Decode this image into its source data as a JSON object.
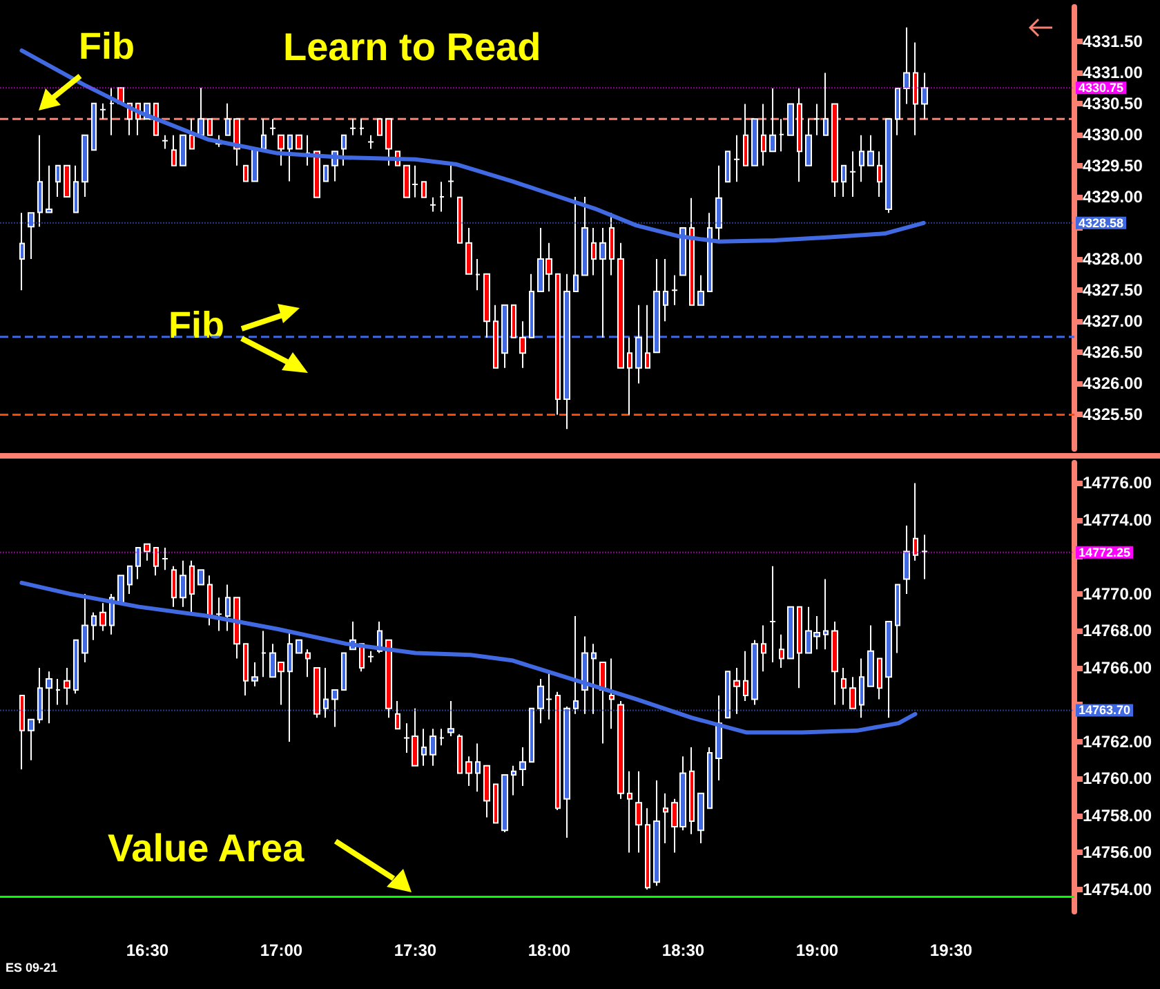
{
  "chart_data": [
    {
      "type": "candlestick",
      "annotations": [
        "Fib",
        "Learn to Read",
        "Fib"
      ],
      "tick_labels": "y",
      "grid": false,
      "marker": "none",
      "xlim": [
        15.95,
        19.96
      ],
      "ylim": [
        4324.95,
        4332.05
      ],
      "yticks": [
        {
          "value": 4325.5,
          "label": "4325.50"
        },
        {
          "value": 4326,
          "label": "4326.00"
        },
        {
          "value": 4326.5,
          "label": "4326.50"
        },
        {
          "value": 4327,
          "label": "4327.00"
        },
        {
          "value": 4327.5,
          "label": "4327.50"
        },
        {
          "value": 4328,
          "label": "4328.00"
        },
        {
          "value": 4328.5,
          "label": null
        },
        {
          "value": 4329,
          "label": "4329.00"
        },
        {
          "value": 4329.5,
          "label": "4329.50"
        },
        {
          "value": 4330,
          "label": "4330.00"
        },
        {
          "value": 4330.5,
          "label": "4330.50"
        },
        {
          "value": 4331,
          "label": "4331.00"
        },
        {
          "value": 4331.5,
          "label": "4331.50"
        }
      ],
      "x": [
        16.0333,
        16.0667,
        16.1,
        16.1333,
        16.1667,
        16.2,
        16.2333,
        16.2667,
        16.3,
        16.3333,
        16.3667,
        16.4,
        16.4333,
        16.4667,
        16.5,
        16.5333,
        16.5667,
        16.6,
        16.6333,
        16.6667,
        16.7,
        16.7333,
        16.7667,
        16.8,
        16.8333,
        16.8667,
        16.9,
        16.9333,
        16.9667,
        17,
        17.0333,
        17.0667,
        17.1,
        17.1333,
        17.1667,
        17.2,
        17.2333,
        17.2667,
        17.3,
        17.3333,
        17.3667,
        17.4,
        17.4333,
        17.4667,
        17.5,
        17.5333,
        17.5667,
        17.6,
        17.6333,
        17.6667,
        17.7,
        17.7333,
        17.7667,
        17.8,
        17.8333,
        17.8667,
        17.9,
        17.9333,
        17.9667,
        18,
        18.0333,
        18.0667,
        18.1,
        18.1333,
        18.1667,
        18.2,
        18.2333,
        18.2667,
        18.3,
        18.3333,
        18.3667,
        18.4,
        18.4333,
        18.4667,
        18.5,
        18.5333,
        18.5667,
        18.6,
        18.6333,
        18.6667,
        18.7,
        18.7333,
        18.7667,
        18.8,
        18.8333,
        18.8667,
        18.9,
        18.9333,
        18.9667,
        19,
        19.0333,
        19.0667,
        19.1,
        19.1333,
        19.1667,
        19.2,
        19.2333,
        19.2667,
        19.3,
        19.3333,
        19.3667,
        19.4
      ],
      "ohlc": [
        [
          4328.0,
          4328.74,
          4327.5,
          4328.25
        ],
        [
          4328.52,
          4328.74,
          4328.0,
          4328.74
        ],
        [
          4328.75,
          4329.99,
          4328.52,
          4329.24
        ],
        [
          4328.75,
          4329.5,
          4328.75,
          4328.8
        ],
        [
          4329.24,
          4329.5,
          4329.0,
          4329.5
        ],
        [
          4329.5,
          4329.5,
          4329.0,
          4329.0
        ],
        [
          4328.75,
          4329.5,
          4328.75,
          4329.24
        ],
        [
          4329.24,
          4329.99,
          4329.0,
          4329.99
        ],
        [
          4329.75,
          4330.5,
          4329.75,
          4330.5
        ],
        [
          4330.4,
          4330.5,
          4330.25,
          4330.4
        ],
        [
          4330.5,
          4330.75,
          4329.99,
          4330.5
        ],
        [
          4330.75,
          4330.75,
          4330.5,
          4330.5
        ],
        [
          4330.5,
          4330.5,
          4329.99,
          4330.25
        ],
        [
          4330.5,
          4330.5,
          4329.99,
          4330.25
        ],
        [
          4330.25,
          4330.5,
          4330.25,
          4330.5
        ],
        [
          4330.5,
          4330.5,
          4329.99,
          4329.99
        ],
        [
          4329.9,
          4329.99,
          4329.77,
          4329.9
        ],
        [
          4329.75,
          4329.99,
          4329.5,
          4329.5
        ],
        [
          4329.5,
          4329.99,
          4329.5,
          4329.99
        ],
        [
          4329.99,
          4330.25,
          4329.77,
          4329.77
        ],
        [
          4329.99,
          4330.75,
          4329.99,
          4330.25
        ],
        [
          4330.25,
          4330.25,
          4329.99,
          4329.99
        ],
        [
          4329.9,
          4329.99,
          4329.8,
          4329.85
        ],
        [
          4329.99,
          4330.5,
          4329.99,
          4330.25
        ],
        [
          4330.25,
          4330.25,
          4329.5,
          4329.77
        ],
        [
          4329.5,
          4329.5,
          4329.25,
          4329.25
        ],
        [
          4329.25,
          4329.77,
          4329.25,
          4329.77
        ],
        [
          4329.77,
          4330.25,
          4329.77,
          4329.99
        ],
        [
          4330.1,
          4330.25,
          4329.99,
          4330.1
        ],
        [
          4329.99,
          4329.99,
          4329.5,
          4329.77
        ],
        [
          4329.77,
          4329.99,
          4329.25,
          4329.99
        ],
        [
          4329.99,
          4329.99,
          4329.77,
          4329.77
        ],
        [
          4329.7,
          4329.99,
          4329.5,
          4329.7
        ],
        [
          4329.73,
          4329.73,
          4328.99,
          4328.99
        ],
        [
          4329.25,
          4329.5,
          4329.25,
          4329.5
        ],
        [
          4329.5,
          4329.73,
          4329.25,
          4329.73
        ],
        [
          4329.77,
          4329.99,
          4329.5,
          4329.99
        ],
        [
          4330.1,
          4330.25,
          4329.99,
          4330.1
        ],
        [
          4330.1,
          4330.25,
          4329.99,
          4330.1
        ],
        [
          4329.88,
          4329.99,
          4329.77,
          4329.88
        ],
        [
          4330.25,
          4330.25,
          4329.99,
          4329.99
        ],
        [
          4330.25,
          4330.25,
          4329.5,
          4329.77
        ],
        [
          4329.73,
          4329.73,
          4329.5,
          4329.5
        ],
        [
          4329.5,
          4329.5,
          4328.99,
          4328.99
        ],
        [
          4329.2,
          4329.5,
          4328.99,
          4329.2
        ],
        [
          4329.24,
          4329.24,
          4328.99,
          4328.99
        ],
        [
          4328.87,
          4328.99,
          4328.76,
          4328.87
        ],
        [
          4329.0,
          4329.24,
          4328.76,
          4329.0
        ],
        [
          4329.25,
          4329.5,
          4328.99,
          4329.25
        ],
        [
          4328.99,
          4328.99,
          4328.26,
          4328.26
        ],
        [
          4328.26,
          4328.5,
          4327.76,
          4327.76
        ],
        [
          4327.75,
          4328.0,
          4327.5,
          4327.75
        ],
        [
          4327.76,
          4327.76,
          4326.74,
          4327.0
        ],
        [
          4327.0,
          4327.26,
          4326.25,
          4326.25
        ],
        [
          4326.49,
          4327.26,
          4326.25,
          4327.26
        ],
        [
          4327.26,
          4327.26,
          4326.74,
          4326.74
        ],
        [
          4326.74,
          4327.0,
          4326.25,
          4326.49
        ],
        [
          4326.74,
          4327.76,
          4326.74,
          4327.48
        ],
        [
          4327.48,
          4328.5,
          4327.48,
          4328.0
        ],
        [
          4328.0,
          4328.26,
          4327.48,
          4327.76
        ],
        [
          4327.76,
          4327.76,
          4325.5,
          4325.75
        ],
        [
          4325.75,
          4327.76,
          4325.27,
          4327.48
        ],
        [
          4327.48,
          4329.0,
          4327.48,
          4327.74
        ],
        [
          4327.74,
          4329.0,
          4327.74,
          4328.5
        ],
        [
          4328.26,
          4328.5,
          4327.74,
          4328.0
        ],
        [
          4328.0,
          4328.5,
          4326.74,
          4328.26
        ],
        [
          4328.5,
          4328.74,
          4327.74,
          4328.0
        ],
        [
          4328.0,
          4328.26,
          4326.25,
          4326.25
        ],
        [
          4326.49,
          4326.74,
          4325.5,
          4326.25
        ],
        [
          4326.25,
          4327.26,
          4326.0,
          4326.74
        ],
        [
          4326.49,
          4327.26,
          4326.25,
          4326.25
        ],
        [
          4326.5,
          4328.0,
          4326.5,
          4327.48
        ],
        [
          4327.26,
          4328.0,
          4327.0,
          4327.48
        ],
        [
          4327.5,
          4327.74,
          4327.26,
          4327.5
        ],
        [
          4327.74,
          4328.5,
          4327.74,
          4328.5
        ],
        [
          4328.5,
          4328.98,
          4327.26,
          4327.26
        ],
        [
          4327.26,
          4327.74,
          4327.26,
          4327.48
        ],
        [
          4327.48,
          4328.74,
          4327.48,
          4328.5
        ],
        [
          4328.5,
          4329.5,
          4328.26,
          4328.98
        ],
        [
          4329.24,
          4329.73,
          4329.24,
          4329.73
        ],
        [
          4329.6,
          4329.99,
          4329.24,
          4329.6
        ],
        [
          4329.99,
          4330.49,
          4329.5,
          4329.5
        ],
        [
          4329.5,
          4330.25,
          4329.5,
          4330.25
        ],
        [
          4329.99,
          4330.49,
          4329.5,
          4329.73
        ],
        [
          4329.73,
          4330.74,
          4329.73,
          4329.99
        ],
        [
          4330.0,
          4330.25,
          4329.73,
          4330.0
        ],
        [
          4329.99,
          4330.49,
          4329.99,
          4330.49
        ],
        [
          4330.49,
          4330.74,
          4329.24,
          4329.73
        ],
        [
          4329.5,
          4330.25,
          4329.5,
          4329.99
        ],
        [
          4330.25,
          4330.49,
          4329.99,
          4330.25
        ],
        [
          4329.99,
          4330.99,
          4329.99,
          4330.25
        ],
        [
          4330.49,
          4330.49,
          4329.0,
          4329.24
        ],
        [
          4329.24,
          4329.5,
          4329.0,
          4329.5
        ],
        [
          4329.4,
          4329.73,
          4329.0,
          4329.4
        ],
        [
          4329.5,
          4329.99,
          4329.24,
          4329.73
        ],
        [
          4329.5,
          4329.99,
          4329.5,
          4329.73
        ],
        [
          4329.5,
          4329.73,
          4329.0,
          4329.24
        ],
        [
          4328.8,
          4330.25,
          4328.74,
          4330.25
        ],
        [
          4330.25,
          4330.74,
          4329.99,
          4330.74
        ],
        [
          4330.74,
          4331.72,
          4330.49,
          4330.99
        ],
        [
          4330.99,
          4331.48,
          4329.99,
          4330.49
        ],
        [
          4330.49,
          4330.99,
          4330.25,
          4330.75
        ]
      ],
      "series": [
        {
          "type": "line",
          "color": "#4169e1",
          "x": [
            16.031,
            16.263,
            16.469,
            16.727,
            16.985,
            17.242,
            17.5,
            17.655,
            17.861,
            18.015,
            18.17,
            18.325,
            18.479,
            18.634,
            18.84,
            19.046,
            19.253,
            19.397
          ],
          "values": [
            4331.35,
            4330.8,
            4330.36,
            4329.92,
            4329.7,
            4329.63,
            4329.6,
            4329.52,
            4329.25,
            4329.03,
            4328.81,
            4328.54,
            4328.37,
            4328.28,
            4328.3,
            4328.35,
            4328.41,
            4328.58
          ]
        }
      ],
      "ref_lines": [
        {
          "axis": "y",
          "value": 4330.25,
          "color": "#fa8072",
          "line_style": "dashed"
        },
        {
          "axis": "y",
          "value": 4326.75,
          "color": "#4169e1",
          "line_style": "dashed"
        },
        {
          "axis": "y",
          "value": 4325.5,
          "color": "#ff4500",
          "line_style": "dashed"
        },
        {
          "axis": "y",
          "value": 4330.75,
          "label": "4330.75",
          "color": "#ff00ff"
        },
        {
          "axis": "y",
          "value": 4328.58,
          "label": "4328.58",
          "color": "#4169e1"
        }
      ]
    },
    {
      "type": "candlestick",
      "annotations": [
        "Value Area",
        "ES 09-21"
      ],
      "grid": false,
      "marker": "none",
      "xlim": [
        15.95,
        19.96
      ],
      "ylim": [
        14752.8,
        14777.1
      ],
      "xticks": [
        {
          "value": 16.5,
          "label": "16:30"
        },
        {
          "value": 17,
          "label": "17:00"
        },
        {
          "value": 17.5,
          "label": "17:30"
        },
        {
          "value": 18,
          "label": "18:00"
        },
        {
          "value": 18.5,
          "label": "18:30"
        },
        {
          "value": 19,
          "label": "19:00"
        },
        {
          "value": 19.5,
          "label": "19:30"
        }
      ],
      "yticks": [
        {
          "value": 14754,
          "label": "14754.00"
        },
        {
          "value": 14756,
          "label": "14756.00"
        },
        {
          "value": 14758,
          "label": "14758.00"
        },
        {
          "value": 14760,
          "label": "14760.00"
        },
        {
          "value": 14762,
          "label": "14762.00"
        },
        {
          "value": 14764,
          "label": null
        },
        {
          "value": 14766,
          "label": "14766.00"
        },
        {
          "value": 14768,
          "label": "14768.00"
        },
        {
          "value": 14770,
          "label": "14770.00"
        },
        {
          "value": 14772,
          "label": null
        },
        {
          "value": 14774,
          "label": "14774.00"
        },
        {
          "value": 14776,
          "label": "14776.00"
        }
      ],
      "x": [
        16.0333,
        16.0667,
        16.1,
        16.1333,
        16.1667,
        16.2,
        16.2333,
        16.2667,
        16.3,
        16.3333,
        16.3667,
        16.4,
        16.4333,
        16.4667,
        16.5,
        16.5333,
        16.5667,
        16.6,
        16.6333,
        16.6667,
        16.7,
        16.7333,
        16.7667,
        16.8,
        16.8333,
        16.8667,
        16.9,
        16.9333,
        16.9667,
        17,
        17.0333,
        17.0667,
        17.1,
        17.1333,
        17.1667,
        17.2,
        17.2333,
        17.2667,
        17.3,
        17.3333,
        17.3667,
        17.4,
        17.4333,
        17.4667,
        17.5,
        17.5333,
        17.5667,
        17.6,
        17.6333,
        17.6667,
        17.7,
        17.7333,
        17.7667,
        17.8,
        17.8333,
        17.8667,
        17.9,
        17.9333,
        17.9667,
        18,
        18.0333,
        18.0667,
        18.1,
        18.1333,
        18.1667,
        18.2,
        18.2333,
        18.2667,
        18.3,
        18.3333,
        18.3667,
        18.4,
        18.4333,
        18.4667,
        18.5,
        18.5333,
        18.5667,
        18.6,
        18.6333,
        18.6667,
        18.7,
        18.7333,
        18.7667,
        18.8,
        18.8333,
        18.8667,
        18.9,
        18.9333,
        18.9667,
        19,
        19.0333,
        19.0667,
        19.1,
        19.1333,
        19.1667,
        19.2,
        19.2333,
        19.2667,
        19.3,
        19.3333,
        19.3667,
        19.4
      ],
      "ohlc": [
        [
          14764.5,
          14764.5,
          14760.5,
          14762.6
        ],
        [
          14762.6,
          14763.2,
          14761.0,
          14763.2
        ],
        [
          14763.2,
          14766.0,
          14763.0,
          14764.9
        ],
        [
          14764.9,
          14765.8,
          14763.0,
          14765.4
        ],
        [
          14764.8,
          14765.4,
          14764.0,
          14764.8
        ],
        [
          14765.3,
          14766.0,
          14764.0,
          14764.9
        ],
        [
          14764.8,
          14767.5,
          14764.6,
          14767.5
        ],
        [
          14766.8,
          14770.0,
          14766.3,
          14768.3
        ],
        [
          14768.3,
          14769.0,
          14767.5,
          14768.8
        ],
        [
          14769.0,
          14769.5,
          14768.0,
          14768.3
        ],
        [
          14768.3,
          14770.0,
          14767.8,
          14769.8
        ],
        [
          14769.5,
          14771.0,
          14769.5,
          14771.0
        ],
        [
          14770.5,
          14771.5,
          14770.0,
          14771.5
        ],
        [
          14771.5,
          14772.5,
          14770.8,
          14772.5
        ],
        [
          14772.7,
          14772.7,
          14771.8,
          14772.3
        ],
        [
          14772.5,
          14772.5,
          14771.0,
          14771.5
        ],
        [
          14771.9,
          14772.5,
          14771.3,
          14771.9
        ],
        [
          14771.3,
          14771.5,
          14769.3,
          14769.8
        ],
        [
          14769.8,
          14771.8,
          14769.3,
          14771.0
        ],
        [
          14771.5,
          14771.8,
          14769.0,
          14770.0
        ],
        [
          14770.5,
          14771.3,
          14770.5,
          14771.3
        ],
        [
          14770.5,
          14771.0,
          14768.3,
          14768.8
        ],
        [
          14768.9,
          14769.8,
          14768.0,
          14768.9
        ],
        [
          14768.8,
          14770.5,
          14768.0,
          14769.8
        ],
        [
          14769.8,
          14769.8,
          14766.5,
          14767.3
        ],
        [
          14767.3,
          14767.3,
          14764.5,
          14765.3
        ],
        [
          14765.3,
          14766.3,
          14765.0,
          14765.5
        ],
        [
          14766.8,
          14768.0,
          14765.5,
          14766.8
        ],
        [
          14765.5,
          14767.3,
          14765.5,
          14766.8
        ],
        [
          14766.3,
          14766.3,
          14764.0,
          14765.8
        ],
        [
          14765.8,
          14768.0,
          14762.0,
          14767.3
        ],
        [
          14766.8,
          14767.5,
          14766.8,
          14767.5
        ],
        [
          14766.8,
          14767.0,
          14765.5,
          14766.5
        ],
        [
          14766.0,
          14766.0,
          14763.3,
          14763.5
        ],
        [
          14763.8,
          14766.0,
          14763.3,
          14764.3
        ],
        [
          14764.3,
          14764.8,
          14762.8,
          14764.8
        ],
        [
          14764.8,
          14766.8,
          14764.8,
          14766.8
        ],
        [
          14767.0,
          14768.5,
          14767.0,
          14767.5
        ],
        [
          14767.3,
          14767.3,
          14765.8,
          14766.0
        ],
        [
          14766.6,
          14766.9,
          14766.3,
          14766.6
        ],
        [
          14766.9,
          14768.5,
          14766.8,
          14768.0
        ],
        [
          14767.5,
          14767.5,
          14763.3,
          14763.8
        ],
        [
          14763.5,
          14764.2,
          14762.7,
          14762.7
        ],
        [
          14762.2,
          14763.0,
          14761.4,
          14762.2
        ],
        [
          14762.3,
          14763.8,
          14760.7,
          14760.7
        ],
        [
          14761.3,
          14762.7,
          14760.7,
          14761.7
        ],
        [
          14761.3,
          14762.7,
          14760.7,
          14762.3
        ],
        [
          14762.2,
          14762.7,
          14761.8,
          14762.2
        ],
        [
          14762.5,
          14764.2,
          14762.3,
          14762.7
        ],
        [
          14762.3,
          14762.4,
          14760.3,
          14760.3
        ],
        [
          14760.9,
          14761.2,
          14759.6,
          14760.3
        ],
        [
          14760.3,
          14761.9,
          14759.3,
          14760.9
        ],
        [
          14760.7,
          14760.7,
          14757.9,
          14758.8
        ],
        [
          14759.7,
          14759.7,
          14757.6,
          14757.6
        ],
        [
          14757.2,
          14760.2,
          14757.1,
          14760.2
        ],
        [
          14760.2,
          14760.7,
          14759.1,
          14760.4
        ],
        [
          14760.5,
          14761.7,
          14759.6,
          14760.9
        ],
        [
          14760.9,
          14763.8,
          14760.9,
          14763.8
        ],
        [
          14763.8,
          14765.4,
          14763.0,
          14765.0
        ],
        [
          14764.3,
          14765.7,
          14763.2,
          14764.3
        ],
        [
          14764.5,
          14764.7,
          14758.3,
          14758.4
        ],
        [
          14758.9,
          14763.9,
          14756.8,
          14763.8
        ],
        [
          14763.8,
          14768.8,
          14763.5,
          14764.2
        ],
        [
          14764.8,
          14767.7,
          14763.5,
          14766.8
        ],
        [
          14766.5,
          14767.3,
          14763.5,
          14766.8
        ],
        [
          14766.3,
          14766.3,
          14761.9,
          14764.8
        ],
        [
          14764.5,
          14766.5,
          14762.7,
          14764.3
        ],
        [
          14764.0,
          14764.2,
          14758.9,
          14759.2
        ],
        [
          14759.2,
          14760.4,
          14756.0,
          14758.9
        ],
        [
          14758.7,
          14760.4,
          14756.0,
          14757.5
        ],
        [
          14757.5,
          14758.4,
          14754.0,
          14754.1
        ],
        [
          14754.4,
          14759.9,
          14754.2,
          14757.7
        ],
        [
          14758.4,
          14759.2,
          14756.5,
          14758.2
        ],
        [
          14758.7,
          14758.9,
          14756.0,
          14757.4
        ],
        [
          14757.4,
          14761.2,
          14757.2,
          14760.3
        ],
        [
          14760.4,
          14761.7,
          14757.0,
          14757.7
        ],
        [
          14757.2,
          14759.2,
          14756.5,
          14759.2
        ],
        [
          14758.4,
          14761.7,
          14758.4,
          14761.4
        ],
        [
          14761.1,
          14764.5,
          14759.9,
          14763.0
        ],
        [
          14763.3,
          14765.8,
          14763.3,
          14765.8
        ],
        [
          14765.3,
          14766.0,
          14763.5,
          14765.0
        ],
        [
          14765.3,
          14766.9,
          14764.2,
          14764.5
        ],
        [
          14764.3,
          14767.5,
          14764.0,
          14767.3
        ],
        [
          14767.3,
          14768.3,
          14765.8,
          14766.8
        ],
        [
          14768.5,
          14771.5,
          14766.3,
          14768.5
        ],
        [
          14767.0,
          14767.8,
          14766.0,
          14766.5
        ],
        [
          14766.5,
          14769.3,
          14766.5,
          14769.3
        ],
        [
          14769.3,
          14769.3,
          14764.9,
          14766.8
        ],
        [
          14766.8,
          14769.3,
          14766.8,
          14768.0
        ],
        [
          14767.7,
          14768.8,
          14767.0,
          14767.9
        ],
        [
          14767.8,
          14770.8,
          14767.0,
          14768.0
        ],
        [
          14768.0,
          14768.5,
          14764.0,
          14765.8
        ],
        [
          14765.4,
          14766.0,
          14764.0,
          14764.9
        ],
        [
          14764.9,
          14765.5,
          14763.8,
          14763.8
        ],
        [
          14764.0,
          14766.5,
          14763.3,
          14765.5
        ],
        [
          14765.0,
          14768.3,
          14765.0,
          14766.9
        ],
        [
          14766.5,
          14766.5,
          14764.3,
          14764.9
        ],
        [
          14765.5,
          14768.5,
          14763.3,
          14768.5
        ],
        [
          14768.3,
          14770.5,
          14766.8,
          14770.5
        ],
        [
          14770.8,
          14773.7,
          14770.0,
          14772.3
        ],
        [
          14773.0,
          14776.0,
          14771.8,
          14772.1
        ],
        [
          14772.3,
          14773.2,
          14770.8,
          14772.3
        ]
      ],
      "series": [
        {
          "type": "line",
          "color": "#4169e1",
          "x": [
            16.031,
            16.211,
            16.469,
            16.727,
            16.985,
            17.242,
            17.5,
            17.706,
            17.861,
            18.015,
            18.17,
            18.325,
            18.531,
            18.737,
            18.943,
            19.149,
            19.304,
            19.366
          ],
          "values": [
            14770.6,
            14770.0,
            14769.3,
            14768.8,
            14768.1,
            14767.3,
            14766.8,
            14766.7,
            14766.4,
            14765.7,
            14765.0,
            14764.3,
            14763.3,
            14762.5,
            14762.5,
            14762.6,
            14763.0,
            14763.5
          ]
        }
      ],
      "ref_lines": [
        {
          "axis": "y",
          "value": 14753.6,
          "color": "#00ff00",
          "line_style": "solid"
        },
        {
          "axis": "y",
          "value": 14772.25,
          "label": "14772.25",
          "color": "#ff00ff"
        },
        {
          "axis": "y",
          "value": 14763.7,
          "label": "14763.70",
          "color": "#4169e1"
        }
      ]
    }
  ]
}
